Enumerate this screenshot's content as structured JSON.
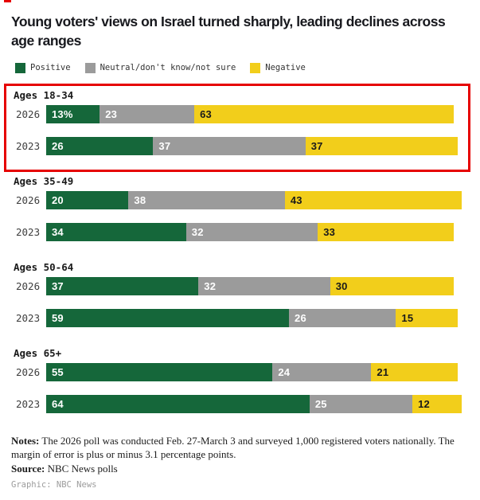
{
  "title": "Young voters' views on Israel turned sharply, leading declines across age ranges",
  "legend": [
    {
      "name": "positive",
      "label": "Positive",
      "color": "#15673A"
    },
    {
      "name": "neutral",
      "label": "Neutral/don't know/not sure",
      "color": "#9B9B9B"
    },
    {
      "name": "negative",
      "label": "Negative",
      "color": "#F2CE1B"
    }
  ],
  "chart_data": {
    "type": "bar",
    "orientation": "horizontal",
    "stacked": true,
    "units": "percent",
    "xlim": [
      0,
      100
    ],
    "grid": false,
    "legend_position": "top",
    "series_names": [
      "Positive",
      "Neutral/don't know/not sure",
      "Negative"
    ],
    "series_colors": [
      "#15673A",
      "#9B9B9B",
      "#F2CE1B"
    ],
    "label_colors": [
      "#FFFFFF",
      "#FFFFFF",
      "#1A1A1A"
    ],
    "highlight_border_color": "#E60000",
    "groups": [
      {
        "label": "Ages 18-34",
        "highlighted": true,
        "rows": [
          {
            "year": "2026",
            "values": [
              13,
              23,
              63
            ],
            "value_labels": [
              "13%",
              "23",
              "63"
            ]
          },
          {
            "year": "2023",
            "values": [
              26,
              37,
              37
            ],
            "value_labels": [
              "26",
              "37",
              "37"
            ]
          }
        ]
      },
      {
        "label": "Ages 35-49",
        "highlighted": false,
        "rows": [
          {
            "year": "2026",
            "values": [
              20,
              38,
              43
            ],
            "value_labels": [
              "20",
              "38",
              "43"
            ]
          },
          {
            "year": "2023",
            "values": [
              34,
              32,
              33
            ],
            "value_labels": [
              "34",
              "32",
              "33"
            ]
          }
        ]
      },
      {
        "label": "Ages 50-64",
        "highlighted": false,
        "rows": [
          {
            "year": "2026",
            "values": [
              37,
              32,
              30
            ],
            "value_labels": [
              "37",
              "32",
              "30"
            ]
          },
          {
            "year": "2023",
            "values": [
              59,
              26,
              15
            ],
            "value_labels": [
              "59",
              "26",
              "15"
            ]
          }
        ]
      },
      {
        "label": "Ages 65+",
        "highlighted": false,
        "rows": [
          {
            "year": "2026",
            "values": [
              55,
              24,
              21
            ],
            "value_labels": [
              "55",
              "24",
              "21"
            ]
          },
          {
            "year": "2023",
            "values": [
              64,
              25,
              12
            ],
            "value_labels": [
              "64",
              "25",
              "12"
            ]
          }
        ]
      }
    ]
  },
  "footer": {
    "notes_label": "Notes:",
    "notes_text": "The 2026 poll was conducted Feb. 27-March 3 and surveyed 1,000 registered voters nationally. The margin of error is plus or minus 3.1 percentage points.",
    "source_label": "Source:",
    "source_text": "NBC News polls",
    "credit": "Graphic: NBC News"
  }
}
